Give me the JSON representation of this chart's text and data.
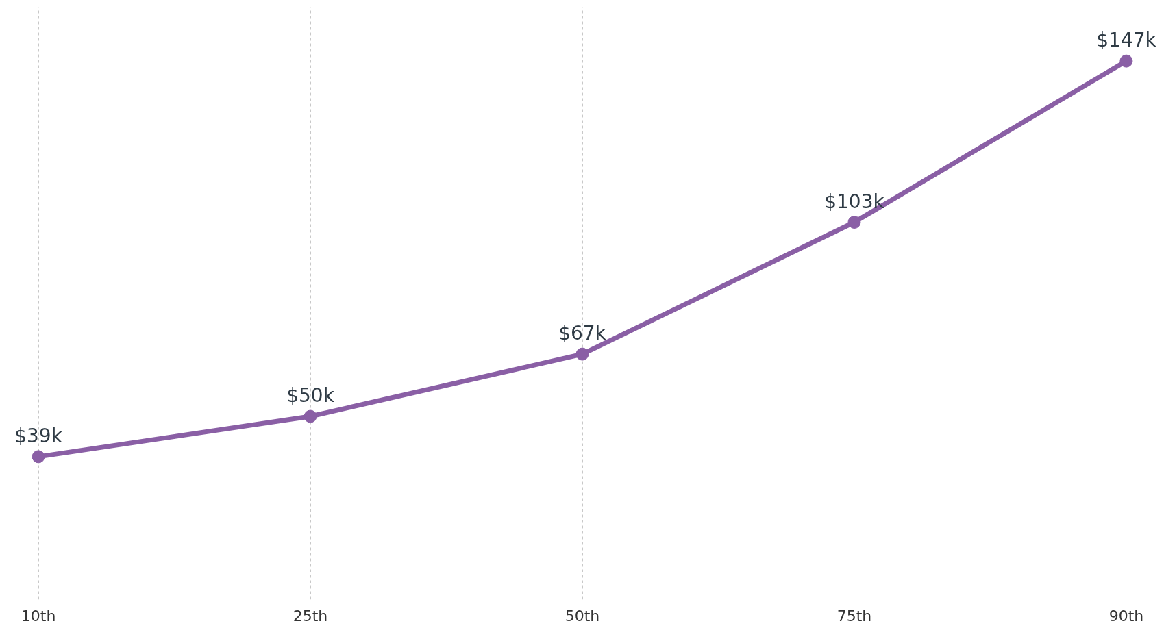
{
  "chart_data": {
    "type": "line",
    "categories": [
      "10th",
      "25th",
      "50th",
      "75th",
      "90th"
    ],
    "series": [
      {
        "color": "#8a5fa5",
        "values": [
          39,
          50,
          67,
          103,
          147
        ],
        "value_labels": [
          "$39k",
          "$50k",
          "$67k",
          "$103k",
          "$147k"
        ]
      }
    ],
    "tick_labels": "x",
    "grid": "x",
    "marker": "circle",
    "line_style": "solid"
  }
}
